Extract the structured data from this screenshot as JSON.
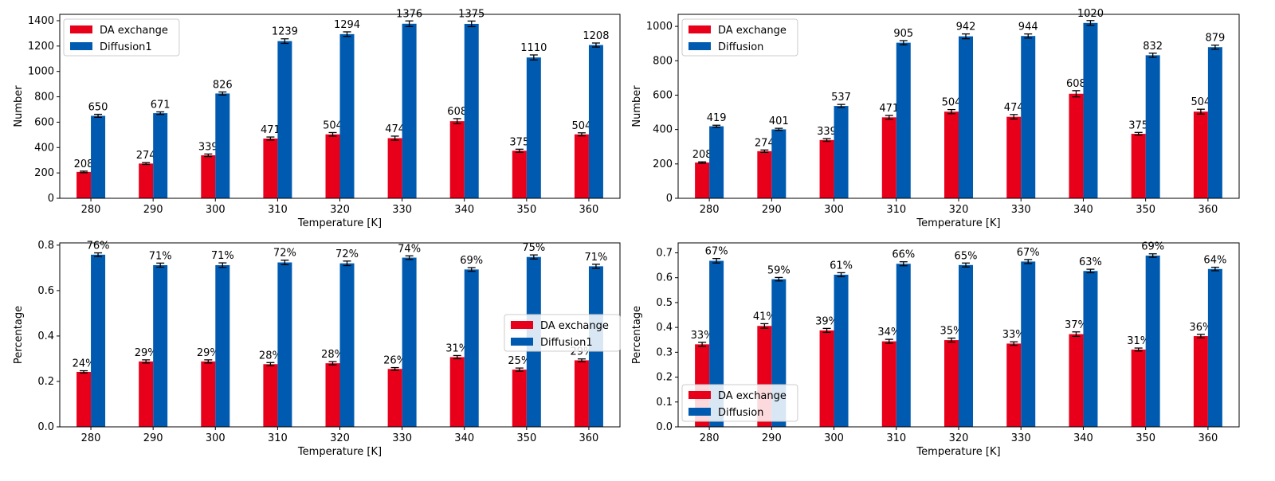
{
  "colors": {
    "da": "#e8001b",
    "diff": "#005bb0",
    "errorbar": "#000000",
    "axis": "#000000"
  },
  "chart_data": [
    {
      "id": "top-left",
      "type": "bar",
      "xlabel": "Temperature [K]",
      "ylabel": "Number",
      "categories": [
        "280",
        "290",
        "300",
        "310",
        "320",
        "330",
        "340",
        "350",
        "360"
      ],
      "ylim": [
        0,
        1450
      ],
      "yticks": [
        0,
        200,
        400,
        600,
        800,
        1000,
        1200,
        1400
      ],
      "legend_position": "upper-left",
      "series": [
        {
          "name": "DA exchange",
          "values": [
            208,
            274,
            339,
            471,
            504,
            474,
            608,
            375,
            504
          ],
          "errors": [
            6,
            7,
            10,
            12,
            14,
            16,
            20,
            12,
            12
          ],
          "labels": [
            "208",
            "274",
            "339",
            "471",
            "504",
            "474",
            "608",
            "375",
            "504"
          ]
        },
        {
          "name": "Diffusion1",
          "values": [
            650,
            671,
            826,
            1239,
            1294,
            1376,
            1375,
            1110,
            1208
          ],
          "errors": [
            12,
            10,
            12,
            18,
            18,
            22,
            22,
            20,
            16
          ],
          "labels": [
            "650",
            "671",
            "826",
            "1239",
            "1294",
            "1376",
            "1375",
            "1110",
            "1208"
          ]
        }
      ]
    },
    {
      "id": "top-right",
      "type": "bar",
      "xlabel": "Temperature [K]",
      "ylabel": "Number",
      "categories": [
        "280",
        "290",
        "300",
        "310",
        "320",
        "330",
        "340",
        "350",
        "360"
      ],
      "ylim": [
        0,
        1070
      ],
      "yticks": [
        0,
        200,
        400,
        600,
        800,
        1000
      ],
      "legend_position": "upper-left",
      "series": [
        {
          "name": "DA exchange",
          "values": [
            208,
            274,
            339,
            471,
            504,
            474,
            608,
            375,
            504
          ],
          "errors": [
            4,
            7,
            8,
            11,
            12,
            13,
            18,
            8,
            14
          ],
          "labels": [
            "208",
            "274",
            "339",
            "471",
            "504",
            "474",
            "608",
            "375",
            "504"
          ]
        },
        {
          "name": "Diffusion",
          "values": [
            419,
            401,
            537,
            905,
            942,
            944,
            1020,
            832,
            879
          ],
          "errors": [
            6,
            6,
            9,
            12,
            14,
            12,
            14,
            12,
            12
          ],
          "labels": [
            "419",
            "401",
            "537",
            "905",
            "942",
            "944",
            "1020",
            "832",
            "879"
          ]
        }
      ]
    },
    {
      "id": "bottom-left",
      "type": "bar",
      "xlabel": "Temperature [K]",
      "ylabel": "Percentage",
      "categories": [
        "280",
        "290",
        "300",
        "310",
        "320",
        "330",
        "340",
        "350",
        "360"
      ],
      "ylim": [
        0,
        0.81
      ],
      "yticks": [
        0.0,
        0.2,
        0.4,
        0.6,
        0.8
      ],
      "ytick_labels": [
        "0.0",
        "0.2",
        "0.4",
        "0.6",
        "0.8"
      ],
      "legend_position": "center-right",
      "series": [
        {
          "name": "DA exchange",
          "values": [
            0.242,
            0.288,
            0.288,
            0.276,
            0.28,
            0.255,
            0.307,
            0.252,
            0.293
          ],
          "errors": [
            0.005,
            0.007,
            0.007,
            0.007,
            0.007,
            0.006,
            0.007,
            0.007,
            0.006
          ],
          "labels": [
            "24%",
            "29%",
            "29%",
            "28%",
            "28%",
            "26%",
            "31%",
            "25%",
            "29%"
          ]
        },
        {
          "name": "Diffusion1",
          "values": [
            0.758,
            0.712,
            0.712,
            0.724,
            0.72,
            0.745,
            0.693,
            0.748,
            0.707
          ],
          "errors": [
            0.008,
            0.009,
            0.01,
            0.01,
            0.01,
            0.008,
            0.008,
            0.009,
            0.009
          ],
          "labels": [
            "76%",
            "71%",
            "71%",
            "72%",
            "72%",
            "74%",
            "69%",
            "75%",
            "71%"
          ]
        }
      ]
    },
    {
      "id": "bottom-right",
      "type": "bar",
      "xlabel": "Temperature [K]",
      "ylabel": "Percentage",
      "categories": [
        "280",
        "290",
        "300",
        "310",
        "320",
        "330",
        "340",
        "350",
        "360"
      ],
      "ylim": [
        0,
        0.74
      ],
      "yticks": [
        0.0,
        0.1,
        0.2,
        0.3,
        0.4,
        0.5,
        0.6,
        0.7
      ],
      "ytick_labels": [
        "0.0",
        "0.1",
        "0.2",
        "0.3",
        "0.4",
        "0.5",
        "0.6",
        "0.7"
      ],
      "legend_position": "lower-left",
      "series": [
        {
          "name": "DA exchange",
          "values": [
            0.332,
            0.406,
            0.388,
            0.344,
            0.349,
            0.335,
            0.373,
            0.311,
            0.365
          ],
          "errors": [
            0.008,
            0.009,
            0.008,
            0.008,
            0.008,
            0.007,
            0.009,
            0.006,
            0.007
          ],
          "labels": [
            "33%",
            "41%",
            "39%",
            "34%",
            "35%",
            "33%",
            "37%",
            "31%",
            "36%"
          ]
        },
        {
          "name": "Diffusion",
          "values": [
            0.668,
            0.594,
            0.612,
            0.656,
            0.651,
            0.665,
            0.627,
            0.689,
            0.635
          ],
          "errors": [
            0.009,
            0.007,
            0.008,
            0.008,
            0.008,
            0.008,
            0.007,
            0.007,
            0.007
          ],
          "labels": [
            "67%",
            "59%",
            "61%",
            "66%",
            "65%",
            "67%",
            "63%",
            "69%",
            "64%"
          ]
        }
      ]
    }
  ]
}
